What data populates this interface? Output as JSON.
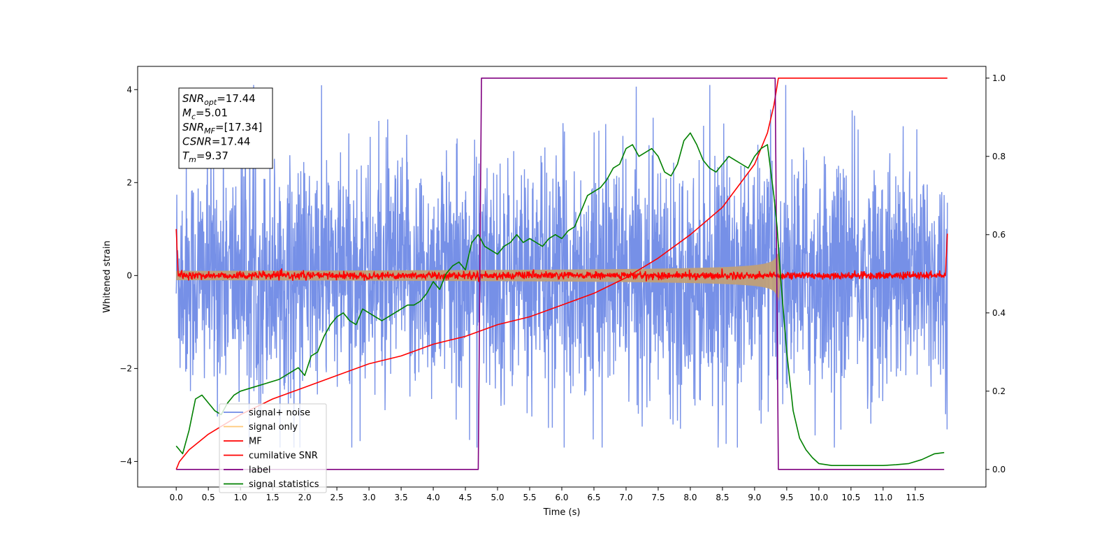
{
  "chart_data": {
    "type": "line",
    "title": "",
    "xlabel": "Time (s)",
    "ylabel": "Whitened strain",
    "y2label": "",
    "xlim": [
      -0.6,
      12.6
    ],
    "ylim": [
      -4.55,
      4.5
    ],
    "y2lim": [
      -0.045,
      1.03
    ],
    "xticks": [
      0.0,
      0.5,
      1.0,
      1.5,
      2.0,
      2.5,
      3.0,
      3.5,
      4.0,
      4.5,
      5.0,
      5.5,
      6.0,
      6.5,
      7.0,
      7.5,
      8.0,
      8.5,
      9.0,
      9.5,
      10.0,
      10.5,
      11.0,
      11.5
    ],
    "xtick_labels": [
      "0.0",
      "0.5",
      "1.0",
      "1.5",
      "2.0",
      "2.5",
      "3.0",
      "3.5",
      "4.0",
      "4.5",
      "5.0",
      "5.5",
      "6.0",
      "6.5",
      "7.0",
      "7.5",
      "8.0",
      "8.5",
      "9.0",
      "9.5",
      "10.0",
      "10.5",
      "11.0",
      "11.5"
    ],
    "yticks": [
      -4,
      -2,
      0,
      2,
      4
    ],
    "ytick_labels": [
      "−4",
      "−2",
      "0",
      "2",
      "4"
    ],
    "y2ticks": [
      0.0,
      0.2,
      0.4,
      0.6,
      0.8,
      1.0
    ],
    "y2tick_labels": [
      "0.0",
      "0.2",
      "0.4",
      "0.6",
      "0.8",
      "1.0"
    ],
    "grid": false,
    "legend_position": "lower-left",
    "series": [
      {
        "name": "signal+ noise",
        "color": "#6f8ae6",
        "axis": "left",
        "t_range": [
          0.0,
          12.0
        ],
        "noise_sigma": 1.0,
        "observed_peak_range": [
          -3.7,
          4.1
        ]
      },
      {
        "name": "signal only",
        "color": "#ffc878",
        "axis": "left",
        "t_range": [
          0.0,
          12.0
        ],
        "merger_time": 9.37,
        "amplitude_at_start": 0.1,
        "amplitude_at_merger": 1.0
      },
      {
        "name": "MF",
        "color": "#ff0000",
        "axis": "left",
        "t_range": [
          0.0,
          12.0
        ],
        "baseline": 0.0,
        "noise_amplitude": 0.08,
        "edge_value_start": 1.0,
        "edge_value_end": 0.9
      },
      {
        "name": "cumilative SNR",
        "color": "#ff0000",
        "axis": "right",
        "x": [
          0.0,
          0.05,
          0.2,
          0.5,
          1.0,
          1.5,
          2.0,
          2.5,
          3.0,
          3.5,
          4.0,
          4.5,
          5.0,
          5.5,
          6.0,
          6.5,
          7.0,
          7.5,
          8.0,
          8.5,
          9.0,
          9.2,
          9.3,
          9.37,
          9.5,
          10.0,
          11.0,
          12.0
        ],
        "y": [
          0.0,
          0.02,
          0.05,
          0.09,
          0.14,
          0.18,
          0.21,
          0.24,
          0.27,
          0.29,
          0.32,
          0.34,
          0.37,
          0.39,
          0.42,
          0.45,
          0.49,
          0.54,
          0.6,
          0.67,
          0.78,
          0.86,
          0.93,
          1.0,
          1.0,
          1.0,
          1.0,
          1.0
        ]
      },
      {
        "name": "label",
        "color": "#800080",
        "axis": "right",
        "x": [
          0.0,
          4.7,
          4.75,
          9.32,
          9.37,
          11.95
        ],
        "y": [
          0.0,
          0.0,
          1.0,
          1.0,
          0.0,
          0.0
        ]
      },
      {
        "name": "signal statistics",
        "color": "#008000",
        "axis": "right",
        "x": [
          0.0,
          0.1,
          0.2,
          0.3,
          0.4,
          0.5,
          0.6,
          0.7,
          0.8,
          0.9,
          1.0,
          1.2,
          1.4,
          1.6,
          1.8,
          1.9,
          2.0,
          2.1,
          2.2,
          2.3,
          2.4,
          2.5,
          2.6,
          2.7,
          2.8,
          2.9,
          3.0,
          3.1,
          3.2,
          3.3,
          3.4,
          3.5,
          3.6,
          3.7,
          3.8,
          3.9,
          4.0,
          4.1,
          4.2,
          4.3,
          4.4,
          4.5,
          4.6,
          4.7,
          4.8,
          4.9,
          5.0,
          5.1,
          5.2,
          5.3,
          5.4,
          5.5,
          5.6,
          5.7,
          5.8,
          5.9,
          6.0,
          6.1,
          6.2,
          6.3,
          6.4,
          6.5,
          6.6,
          6.7,
          6.8,
          6.9,
          7.0,
          7.1,
          7.2,
          7.3,
          7.4,
          7.5,
          7.6,
          7.7,
          7.8,
          7.9,
          8.0,
          8.1,
          8.2,
          8.3,
          8.4,
          8.5,
          8.6,
          8.7,
          8.8,
          8.9,
          9.0,
          9.1,
          9.2,
          9.3,
          9.35,
          9.4,
          9.5,
          9.6,
          9.7,
          9.8,
          9.9,
          10.0,
          10.2,
          10.5,
          10.8,
          11.0,
          11.2,
          11.4,
          11.6,
          11.8,
          11.95
        ],
        "y": [
          0.06,
          0.04,
          0.1,
          0.18,
          0.19,
          0.17,
          0.15,
          0.14,
          0.17,
          0.19,
          0.2,
          0.21,
          0.22,
          0.23,
          0.25,
          0.26,
          0.24,
          0.29,
          0.3,
          0.34,
          0.37,
          0.39,
          0.4,
          0.38,
          0.37,
          0.41,
          0.4,
          0.39,
          0.38,
          0.39,
          0.4,
          0.41,
          0.42,
          0.42,
          0.43,
          0.45,
          0.48,
          0.46,
          0.5,
          0.52,
          0.53,
          0.51,
          0.58,
          0.6,
          0.57,
          0.56,
          0.55,
          0.57,
          0.58,
          0.6,
          0.58,
          0.59,
          0.58,
          0.57,
          0.59,
          0.6,
          0.59,
          0.61,
          0.62,
          0.66,
          0.7,
          0.71,
          0.72,
          0.74,
          0.77,
          0.78,
          0.82,
          0.83,
          0.8,
          0.81,
          0.82,
          0.8,
          0.76,
          0.75,
          0.78,
          0.84,
          0.86,
          0.83,
          0.79,
          0.77,
          0.76,
          0.78,
          0.8,
          0.79,
          0.78,
          0.77,
          0.8,
          0.82,
          0.83,
          0.7,
          0.62,
          0.5,
          0.3,
          0.15,
          0.08,
          0.05,
          0.03,
          0.015,
          0.01,
          0.01,
          0.01,
          0.01,
          0.012,
          0.015,
          0.025,
          0.04,
          0.043
        ]
      }
    ],
    "annotation": {
      "lines": [
        {
          "name": "SNR",
          "sub": "opt",
          "value": "=17.44"
        },
        {
          "name": "M",
          "sub": "c",
          "value": "=5.01"
        },
        {
          "name": "SNR",
          "sub": "MF",
          "value": "=[17.34]"
        },
        {
          "name": "CSNR",
          "sub": "",
          "value": "=17.44"
        },
        {
          "name": "T",
          "sub": "m",
          "value": "=9.37"
        }
      ]
    }
  }
}
